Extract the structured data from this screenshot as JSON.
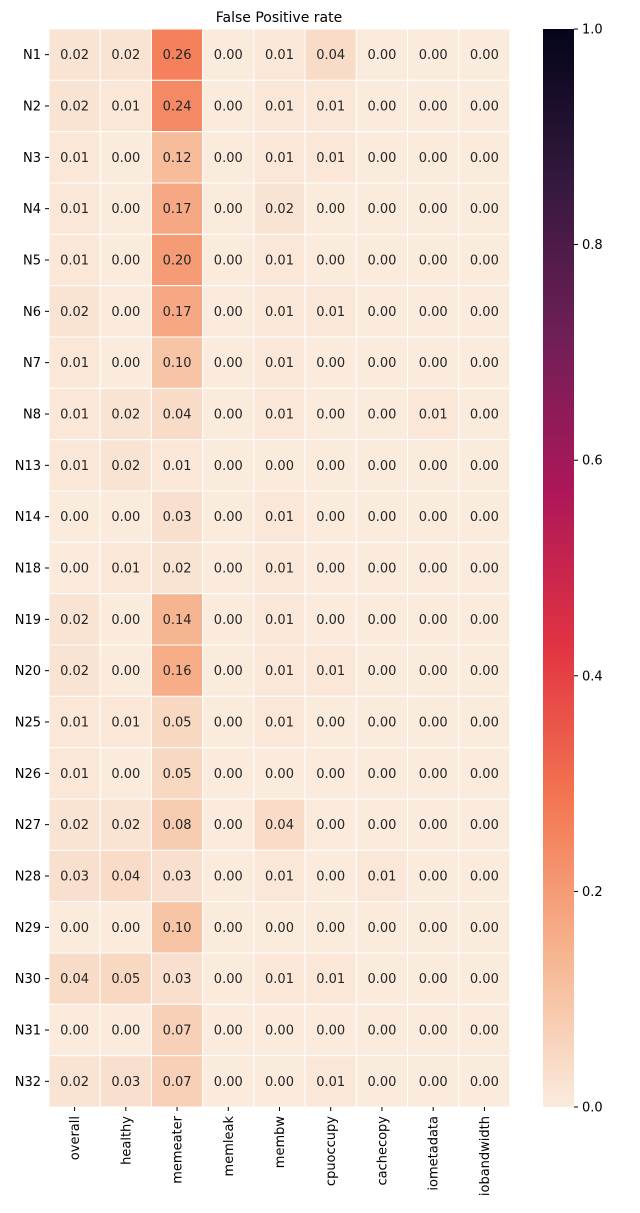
{
  "chart_data": {
    "type": "heatmap",
    "title": "False Positive rate",
    "xlabel": "",
    "ylabel": "",
    "columns": [
      "overall",
      "healthy",
      "memeater",
      "memleak",
      "membw",
      "cpuoccupy",
      "cachecopy",
      "iometadata",
      "iobandwidth"
    ],
    "rows": [
      "N1",
      "N2",
      "N3",
      "N4",
      "N5",
      "N6",
      "N7",
      "N8",
      "N13",
      "N14",
      "N18",
      "N19",
      "N20",
      "N25",
      "N26",
      "N27",
      "N28",
      "N29",
      "N30",
      "N31",
      "N32"
    ],
    "values": [
      [
        0.02,
        0.02,
        0.26,
        0.0,
        0.01,
        0.04,
        0.0,
        0.0,
        0.0
      ],
      [
        0.02,
        0.01,
        0.24,
        0.0,
        0.01,
        0.01,
        0.0,
        0.0,
        0.0
      ],
      [
        0.01,
        0.0,
        0.12,
        0.0,
        0.01,
        0.01,
        0.0,
        0.0,
        0.0
      ],
      [
        0.01,
        0.0,
        0.17,
        0.0,
        0.02,
        0.0,
        0.0,
        0.0,
        0.0
      ],
      [
        0.01,
        0.0,
        0.2,
        0.0,
        0.01,
        0.0,
        0.0,
        0.0,
        0.0
      ],
      [
        0.02,
        0.0,
        0.17,
        0.0,
        0.01,
        0.01,
        0.0,
        0.0,
        0.0
      ],
      [
        0.01,
        0.0,
        0.1,
        0.0,
        0.01,
        0.0,
        0.0,
        0.0,
        0.0
      ],
      [
        0.01,
        0.02,
        0.04,
        0.0,
        0.01,
        0.0,
        0.0,
        0.01,
        0.0
      ],
      [
        0.01,
        0.02,
        0.01,
        0.0,
        0.0,
        0.0,
        0.0,
        0.0,
        0.0
      ],
      [
        0.0,
        0.0,
        0.03,
        0.0,
        0.01,
        0.0,
        0.0,
        0.0,
        0.0
      ],
      [
        0.0,
        0.01,
        0.02,
        0.0,
        0.01,
        0.0,
        0.0,
        0.0,
        0.0
      ],
      [
        0.02,
        0.0,
        0.14,
        0.0,
        0.01,
        0.0,
        0.0,
        0.0,
        0.0
      ],
      [
        0.02,
        0.0,
        0.16,
        0.0,
        0.01,
        0.01,
        0.0,
        0.0,
        0.0
      ],
      [
        0.01,
        0.01,
        0.05,
        0.0,
        0.01,
        0.0,
        0.0,
        0.0,
        0.0
      ],
      [
        0.01,
        0.0,
        0.05,
        0.0,
        0.0,
        0.0,
        0.0,
        0.0,
        0.0
      ],
      [
        0.02,
        0.02,
        0.08,
        0.0,
        0.04,
        0.0,
        0.0,
        0.0,
        0.0
      ],
      [
        0.03,
        0.04,
        0.03,
        0.0,
        0.01,
        0.0,
        0.01,
        0.0,
        0.0
      ],
      [
        0.0,
        0.0,
        0.1,
        0.0,
        0.0,
        0.0,
        0.0,
        0.0,
        0.0
      ],
      [
        0.04,
        0.05,
        0.03,
        0.0,
        0.01,
        0.01,
        0.0,
        0.0,
        0.0
      ],
      [
        0.0,
        0.0,
        0.07,
        0.0,
        0.0,
        0.0,
        0.0,
        0.0,
        0.0
      ],
      [
        0.02,
        0.03,
        0.07,
        0.0,
        0.0,
        0.01,
        0.0,
        0.0,
        0.0
      ]
    ],
    "value_format": "2 decimals",
    "colorbar": {
      "range": [
        0.0,
        1.0
      ],
      "ticks": [
        "0.0",
        "0.2",
        "0.4",
        "0.6",
        "0.8",
        "1.0"
      ],
      "colormap": "rocket_r",
      "colormap_colors": [
        "#faebdd",
        "#f6b48f",
        "#f37651",
        "#e13342",
        "#ad1759",
        "#701f57",
        "#35193e",
        "#03051a"
      ]
    },
    "grid": "white cell borders",
    "legend": "colorbar right"
  }
}
